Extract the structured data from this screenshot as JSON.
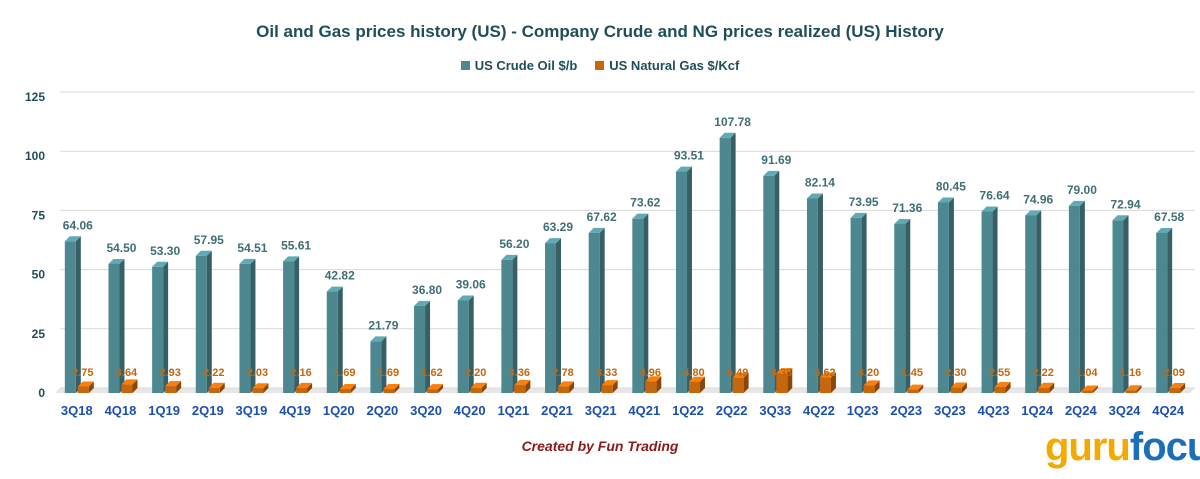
{
  "chart_data": {
    "type": "bar",
    "title": "Oil and Gas prices history (US)  - Company Crude and NG prices realized (US) History",
    "categories": [
      "3Q18",
      "4Q18",
      "1Q19",
      "2Q19",
      "3Q19",
      "4Q19",
      "1Q20",
      "2Q20",
      "3Q20",
      "4Q20",
      "1Q21",
      "2Q21",
      "3Q21",
      "4Q21",
      "1Q22",
      "2Q22",
      "3Q33",
      "4Q22",
      "1Q23",
      "2Q23",
      "3Q23",
      "4Q23",
      "1Q24",
      "2Q24",
      "3Q24",
      "4Q24"
    ],
    "series": [
      {
        "name": "US Crude Oil $/b",
        "color": "#4d8891",
        "values": [
          64.06,
          54.5,
          53.3,
          57.95,
          54.51,
          55.61,
          42.82,
          21.79,
          36.8,
          39.06,
          56.2,
          63.29,
          67.62,
          73.62,
          93.51,
          107.78,
          91.69,
          82.14,
          73.95,
          71.36,
          80.45,
          76.64,
          74.96,
          79.0,
          72.94,
          67.58
        ],
        "labels": [
          "64.06",
          "54.50",
          "53.30",
          "57.95",
          "54.51",
          "55.61",
          "42.82",
          "21.79",
          "36.80",
          "39.06",
          "56.20",
          "63.29",
          "67.62",
          "73.62",
          "93.51",
          "107.78",
          "91.69",
          "82.14",
          "73.95",
          "71.36",
          "80.45",
          "76.64",
          "74.96",
          "79.00",
          "72.94",
          "67.58"
        ]
      },
      {
        "name": "US Natural Gas  $/Kcf",
        "color": "#c6660d",
        "values": [
          2.75,
          3.64,
          2.93,
          2.22,
          2.03,
          2.16,
          1.69,
          1.69,
          1.62,
          2.2,
          3.36,
          2.78,
          3.33,
          4.96,
          4.8,
          6.49,
          8.38,
          6.62,
          3.2,
          1.45,
          2.3,
          2.55,
          2.22,
          1.04,
          1.16,
          2.09
        ],
        "labels": [
          "2.75",
          "3.64",
          "2.93",
          "2.22",
          "2.03",
          "2.16",
          "1.69",
          "1.69",
          "1.62",
          "2.20",
          "3.36",
          "2.78",
          "3.33",
          "4.96",
          "4.80",
          "6.49",
          "8.38",
          "6.62",
          "3.20",
          "1.45",
          "2.30",
          "2.55",
          "2.22",
          "1.04",
          "1.16",
          "2.09"
        ]
      }
    ],
    "ylim": [
      0,
      125
    ],
    "yticks": [
      "0",
      "25",
      "50",
      "75",
      "100",
      "125"
    ],
    "grid": true,
    "legend": "top-center",
    "xlabel": "",
    "ylabel": ""
  },
  "footer": {
    "credit": "Created by Fun Trading",
    "brand_guru": "guru",
    "brand_focus": "focus"
  },
  "colors": {
    "title": "#1f4e5a",
    "tick_x": "#1c4fb0",
    "oil_label": "#3f6e75",
    "gas_label": "#c6660d",
    "credit": "#8b1a1a"
  }
}
